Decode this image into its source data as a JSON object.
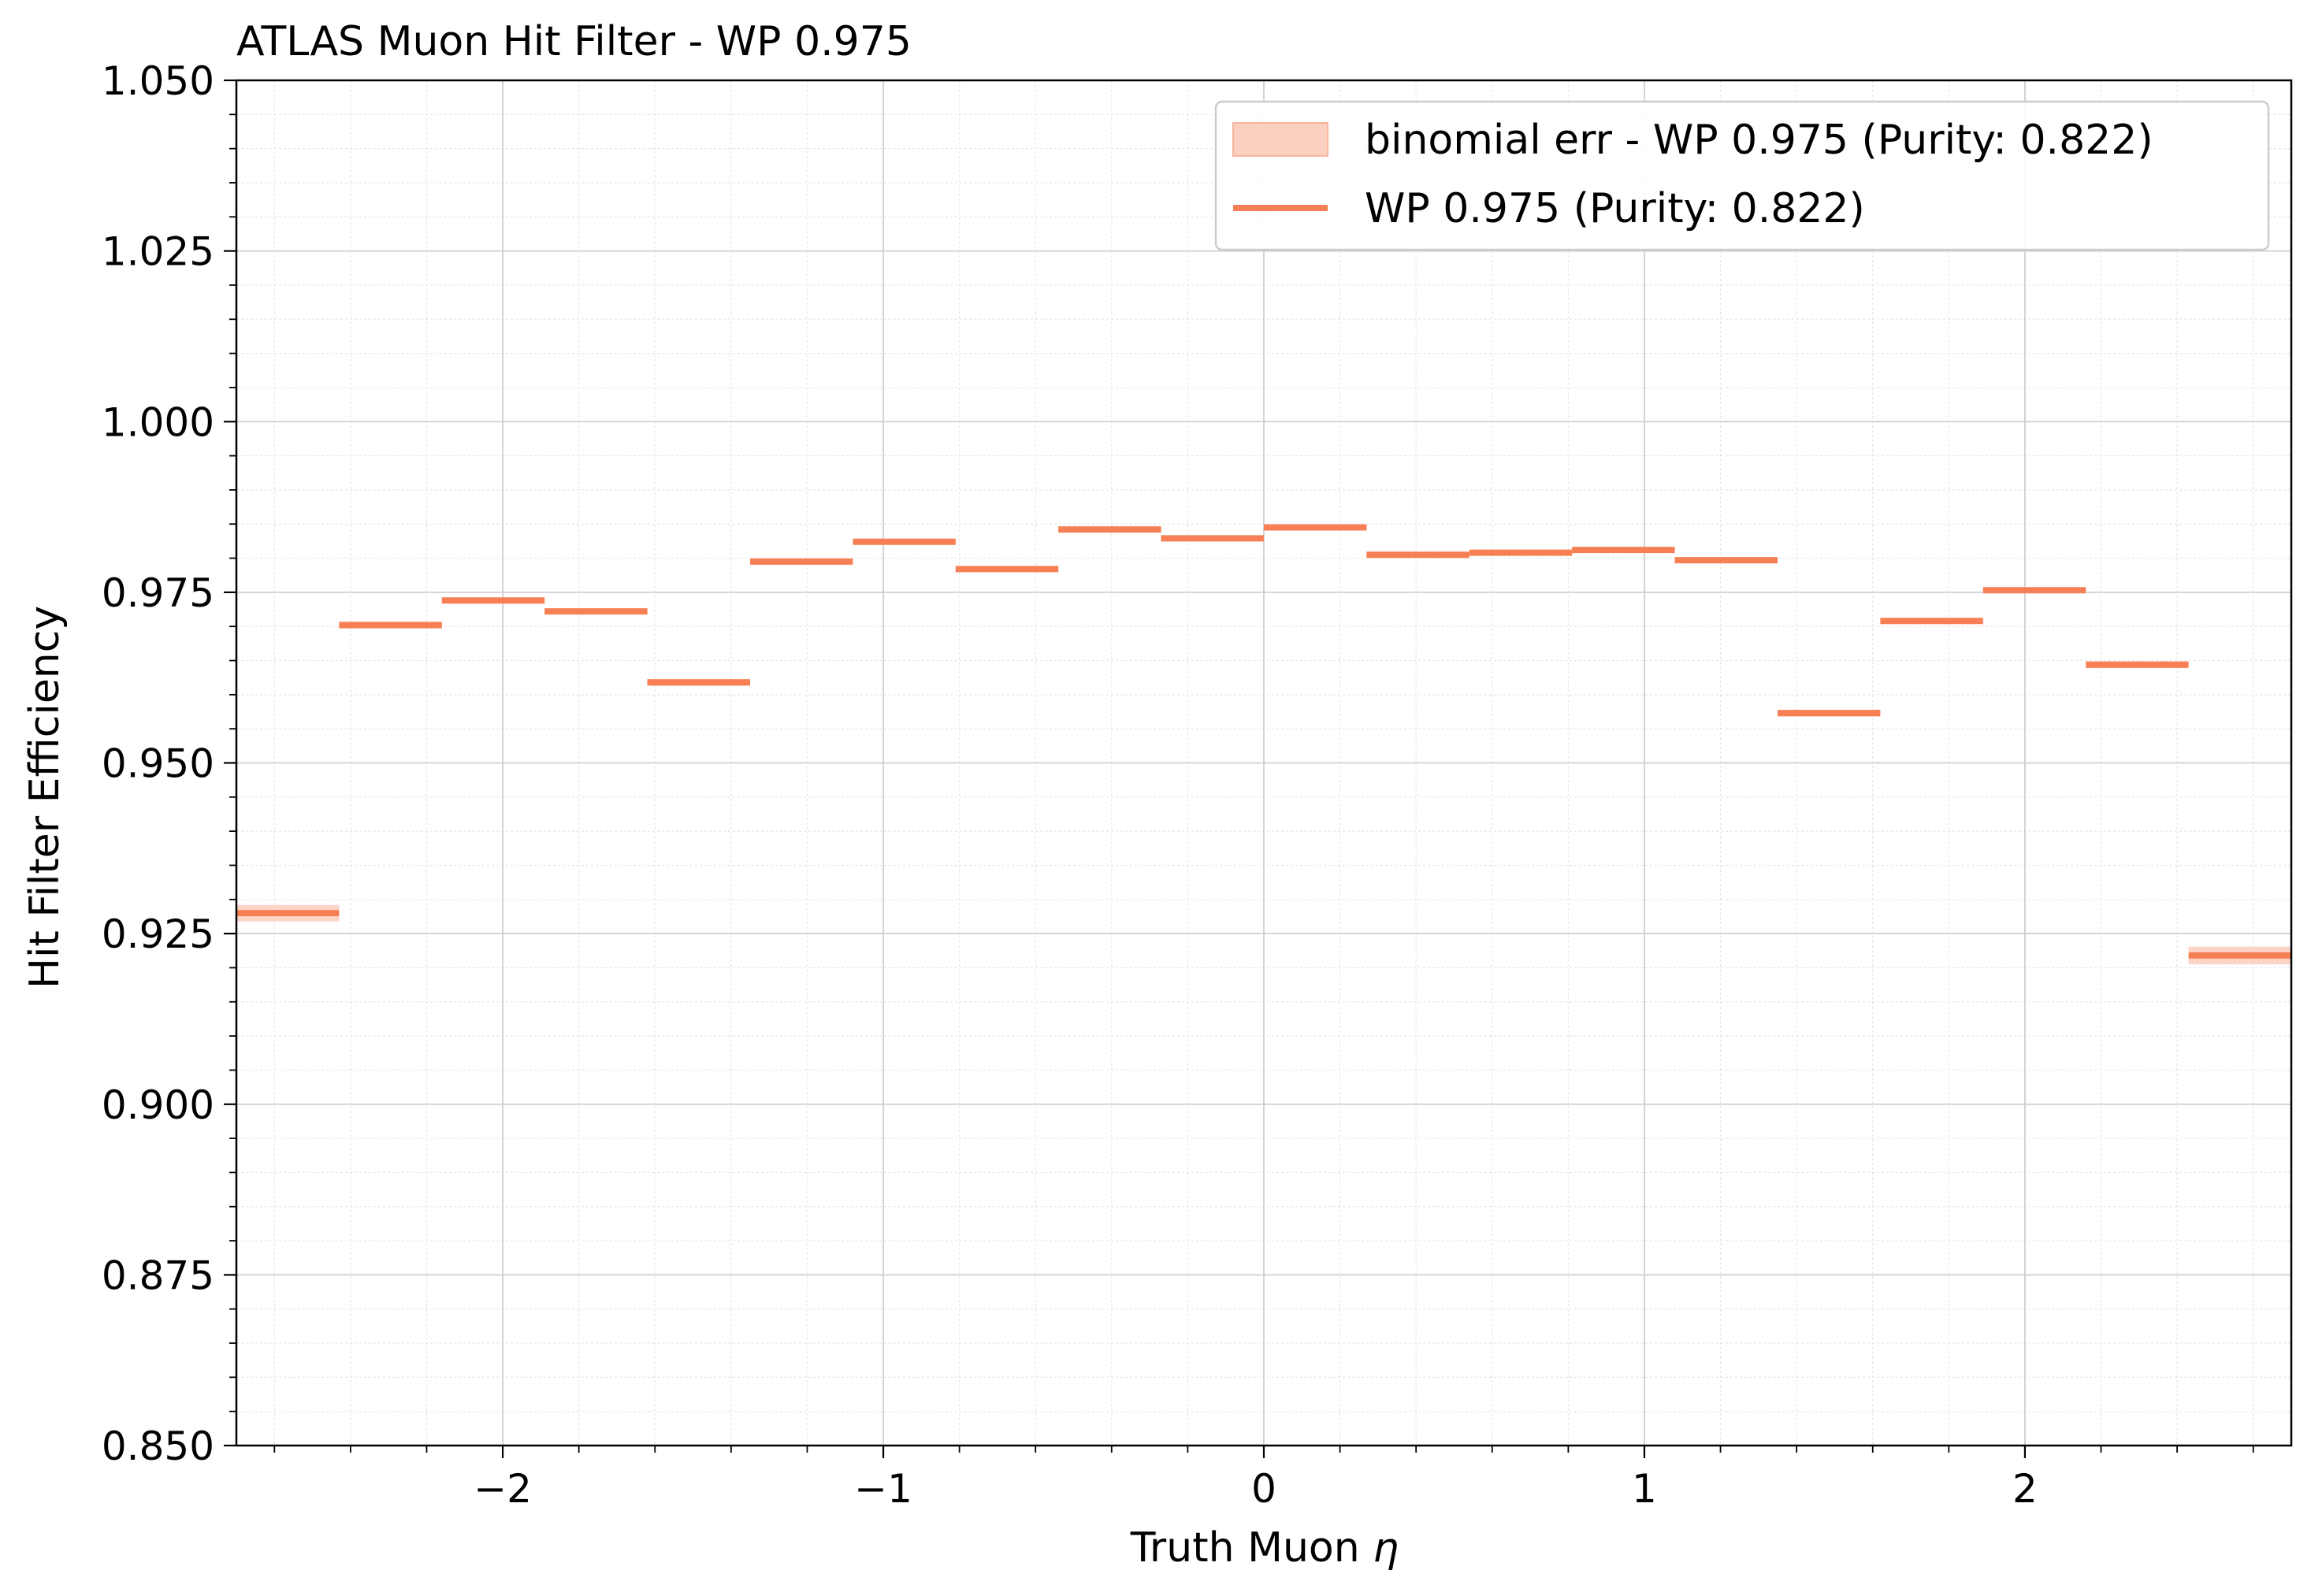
{
  "chart_data": {
    "type": "line",
    "title": "ATLAS Muon Hit Filter - WP 0.975",
    "xlabel": "Truth Muon",
    "xlabel_symbol": "η",
    "ylabel": "Hit Filter Efficiency",
    "xlim": [
      -2.7,
      2.7
    ],
    "ylim": [
      0.85,
      1.05
    ],
    "xticks": [
      -2,
      -1,
      0,
      1,
      2
    ],
    "xtick_labels": [
      "−2",
      "−1",
      "0",
      "1",
      "2"
    ],
    "yticks": [
      0.85,
      0.875,
      0.9,
      0.925,
      0.95,
      0.975,
      1.0,
      1.025,
      1.05
    ],
    "ytick_labels": [
      "0.850",
      "0.875",
      "0.900",
      "0.925",
      "0.950",
      "0.975",
      "1.000",
      "1.025",
      "1.050"
    ],
    "grid": true,
    "legend_position": "top-right",
    "colors": {
      "line": "#f77f55",
      "band": "#fcd0c0"
    },
    "series": [
      {
        "name": "WP 0.975 (Purity: 0.822)",
        "kind": "step",
        "bin_edges": [
          -2.7,
          -2.43,
          -2.16,
          -1.89,
          -1.62,
          -1.35,
          -1.08,
          -0.81,
          -0.54,
          -0.27,
          0.0,
          0.27,
          0.54,
          0.81,
          1.08,
          1.35,
          1.62,
          1.89,
          2.16,
          2.43,
          2.7
        ],
        "values": [
          0.928,
          0.9702,
          0.9738,
          0.9722,
          0.9618,
          0.9795,
          0.9824,
          0.9784,
          0.9842,
          0.9829,
          0.9845,
          0.9805,
          0.9808,
          0.9812,
          0.9797,
          0.9573,
          0.9708,
          0.9753,
          0.9644,
          0.9218
        ]
      },
      {
        "name": "binomial err - WP 0.975 (Purity: 0.822)",
        "kind": "band",
        "errors": [
          0.0012,
          0.0005,
          0.0004,
          0.0004,
          0.0005,
          0.0004,
          0.0003,
          0.0004,
          0.0003,
          0.0003,
          0.0003,
          0.0003,
          0.0003,
          0.0003,
          0.0004,
          0.0005,
          0.0004,
          0.0004,
          0.0005,
          0.0013
        ]
      }
    ]
  }
}
